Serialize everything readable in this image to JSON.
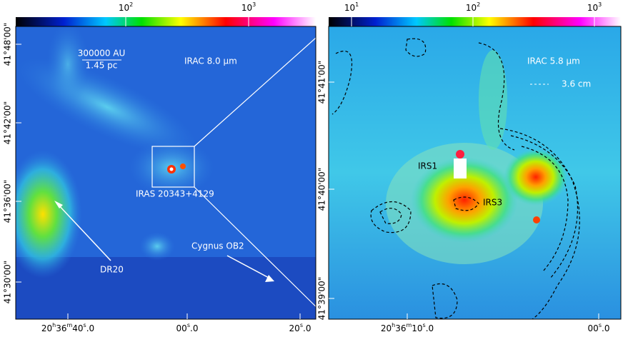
{
  "left": {
    "colorbar_ticks": [
      [
        "10",
        {
          "text": "2",
          "sup": true
        }
      ],
      [
        "10",
        {
          "text": "3",
          "sup": true
        }
      ]
    ],
    "dec_ticks": [
      "41°48'00\"",
      "41°42'00\"",
      "41°36'00\"",
      "41°30'00\""
    ],
    "ra_ticks": [
      [
        "20",
        {
          "text": "h",
          "sup": true
        },
        "36",
        {
          "text": "m",
          "sup": true
        },
        "40",
        {
          "text": "s",
          "sup": true
        },
        ".0"
      ],
      [
        "00",
        {
          "text": "s",
          "sup": true
        },
        ".0"
      ],
      [
        "20",
        {
          "text": "s",
          "sup": true
        },
        ".0"
      ]
    ],
    "scale_bar": {
      "top": "300000 AU",
      "bottom": "1.45 pc"
    },
    "band": "IRAC 8.0 μm",
    "source": "IRAS 20343+4129",
    "labels": [
      "DR20",
      "Cygnus OB2"
    ]
  },
  "right": {
    "colorbar_ticks": [
      [
        "10",
        {
          "text": "1",
          "sup": true
        }
      ],
      [
        "10",
        {
          "text": "2",
          "sup": true
        }
      ],
      [
        "10",
        {
          "text": "3",
          "sup": true
        }
      ]
    ],
    "dec_ticks": [
      "41°41'00\"",
      "41°40'00\"",
      "41°39'00\""
    ],
    "ra_ticks": [
      [
        "20",
        {
          "text": "h",
          "sup": true
        },
        "36",
        {
          "text": "m",
          "sup": true
        },
        "10",
        {
          "text": "s",
          "sup": true
        },
        ".0"
      ],
      [
        "00",
        {
          "text": "s",
          "sup": true
        },
        ".0"
      ]
    ],
    "band": "IRAC 5.8 μm",
    "contour": "3.6 cm",
    "sources": [
      "IRS1",
      "IRS3"
    ]
  }
}
